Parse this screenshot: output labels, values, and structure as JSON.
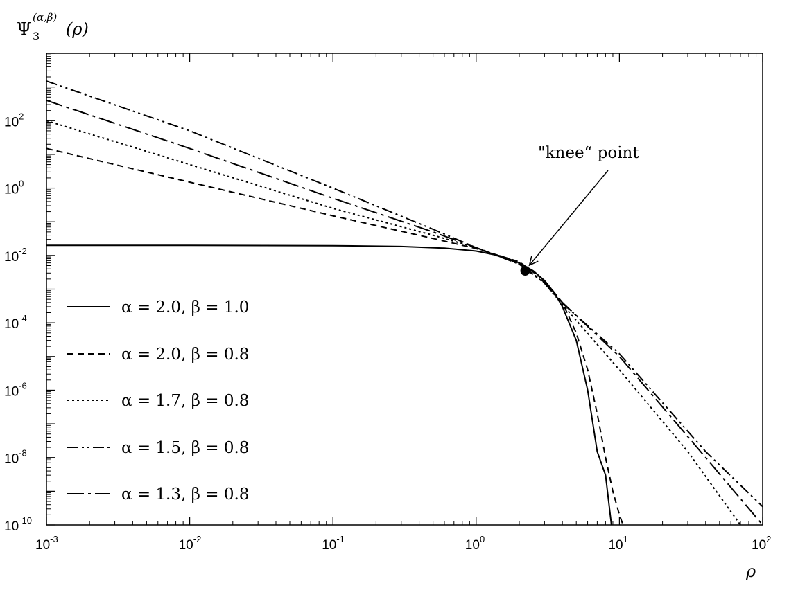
{
  "chart_data": {
    "type": "line",
    "title": "",
    "xlabel": "ρ",
    "ylabel": "Ψ₃^(α,β)(ρ)",
    "ylabel_parts": {
      "base": "Ψ",
      "sub": "3",
      "sup": "(α,β)",
      "arg": "(ρ)"
    },
    "x_scale": "log",
    "y_scale": "log",
    "xlim": [
      0.001,
      100
    ],
    "ylim": [
      1e-10,
      10000
    ],
    "grid": false,
    "legend_position": "bottom-left",
    "x_ticks": [
      {
        "base": "10",
        "exp": "-3",
        "value": 0.001
      },
      {
        "base": "10",
        "exp": "-2",
        "value": 0.01
      },
      {
        "base": "10",
        "exp": "-1",
        "value": 0.1
      },
      {
        "base": "10",
        "exp": "0",
        "value": 1
      },
      {
        "base": "10",
        "exp": "1",
        "value": 10
      },
      {
        "base": "10",
        "exp": "2",
        "value": 100
      }
    ],
    "y_ticks": [
      {
        "base": "10",
        "exp": "2",
        "value": 100
      },
      {
        "base": "10",
        "exp": "0",
        "value": 1
      },
      {
        "base": "10",
        "exp": "-2",
        "value": 0.01
      },
      {
        "base": "10",
        "exp": "-4",
        "value": 0.0001
      },
      {
        "base": "10",
        "exp": "-6",
        "value": 1e-06
      },
      {
        "base": "10",
        "exp": "-8",
        "value": 1e-08
      },
      {
        "base": "10",
        "exp": "-10",
        "value": 1e-10
      }
    ],
    "series": [
      {
        "name": "α = 2.0, β = 1.0",
        "dash": "solid",
        "x": [
          0.001,
          0.01,
          0.1,
          0.3,
          0.6,
          1.0,
          1.5,
          2.0,
          2.5,
          3.0,
          3.5,
          4.0,
          5.0,
          6.0,
          7.0,
          8.0,
          8.8
        ],
        "y": [
          0.02,
          0.02,
          0.0195,
          0.0185,
          0.0165,
          0.0135,
          0.0095,
          0.006,
          0.0035,
          0.0018,
          0.0008,
          0.0003,
          3e-05,
          1e-06,
          1.5e-08,
          3e-09,
          1e-10
        ]
      },
      {
        "name": "α = 2.0, β = 0.8",
        "dash": "dashed",
        "x": [
          0.001,
          0.01,
          0.1,
          0.5,
          1.0,
          2.0,
          3.0,
          4.0,
          5.0,
          6.0,
          7.0,
          8.0,
          9.0,
          10.0,
          10.6
        ],
        "y": [
          15,
          1.5,
          0.15,
          0.032,
          0.016,
          0.0065,
          0.0018,
          0.0004,
          5e-05,
          4e-06,
          2e-07,
          1e-08,
          1e-09,
          2e-10,
          1e-10
        ]
      },
      {
        "name": "α = 1.7, β = 0.8",
        "dash": "dotted",
        "x": [
          0.001,
          0.01,
          0.1,
          0.5,
          1.0,
          2.0,
          3.0,
          4.0,
          10.0,
          30.0,
          70.0
        ],
        "y": [
          100,
          5.0,
          0.25,
          0.04,
          0.017,
          0.0058,
          0.0015,
          0.00035,
          4e-06,
          1.5e-08,
          1e-10
        ]
      },
      {
        "name": "α = 1.5, β = 0.8",
        "dash": "dash-dot-dot",
        "x": [
          0.001,
          0.01,
          0.1,
          0.5,
          1.0,
          2.0,
          3.0,
          4.0,
          10.0,
          40.0,
          100.0
        ],
        "y": [
          1500,
          50,
          1.0,
          0.06,
          0.017,
          0.0055,
          0.0015,
          0.00038,
          1.2e-05,
          1.5e-08,
          3.5e-10
        ]
      },
      {
        "name": "α = 1.3, β = 0.8",
        "dash": "long-dash-dot",
        "x": [
          0.001,
          0.01,
          0.1,
          0.5,
          1.0,
          2.0,
          3.0,
          4.0,
          10.0,
          40.0,
          100.0
        ],
        "y": [
          400,
          15,
          0.5,
          0.05,
          0.017,
          0.0056,
          0.0016,
          0.0004,
          1e-05,
          1e-08,
          1e-10
        ]
      }
    ],
    "annotations": [
      {
        "text": "\"knee“ point",
        "point": {
          "x": 2.2,
          "y": 0.0035
        }
      }
    ]
  }
}
